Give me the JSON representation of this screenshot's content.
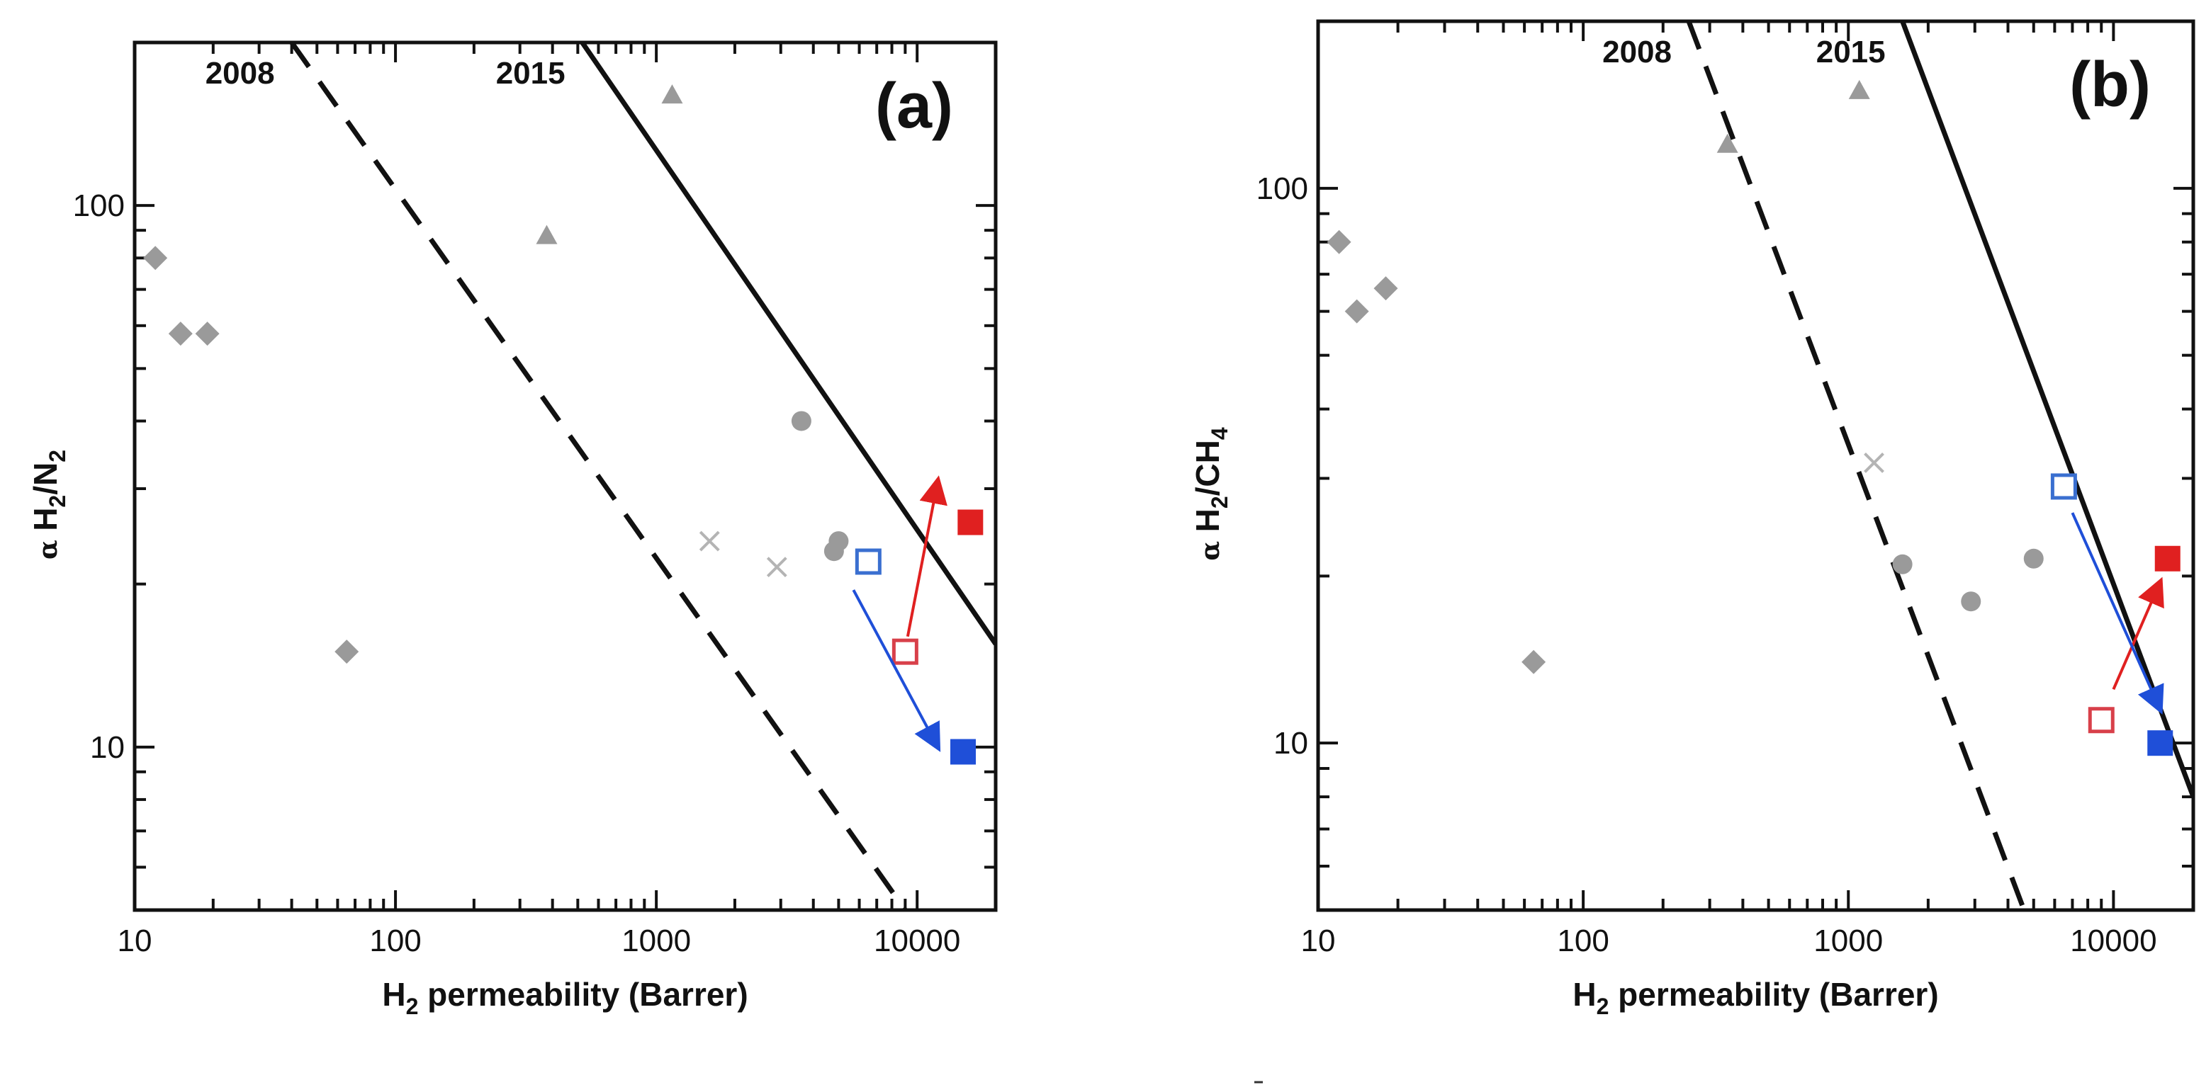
{
  "chart_data": [
    {
      "type": "scatter",
      "panel_label": "(a)",
      "xlabel": {
        "pre": "H",
        "sub": "2",
        "post": " permeability (Barrer)"
      },
      "ylabel": {
        "symbol": "α",
        "parts": [
          {
            "t": "H"
          },
          {
            "t": "2",
            "sub": true
          },
          {
            "t": "/N"
          },
          {
            "t": "2",
            "sub": true
          }
        ]
      },
      "x_scale": "log",
      "y_scale": "log",
      "xlim": [
        10,
        20000
      ],
      "ylim": [
        5,
        200
      ],
      "x_ticks": [
        10,
        100,
        1000,
        10000
      ],
      "x_tick_labels": [
        "10",
        "100",
        "1000",
        "10000"
      ],
      "y_ticks": [
        10,
        100
      ],
      "y_tick_labels": [
        "10",
        "100"
      ],
      "upper_bounds": [
        {
          "label": "2008",
          "style": "dashed",
          "points": [
            [
              40,
              200
            ],
            [
              9000,
              5
            ]
          ]
        },
        {
          "label": "2015",
          "style": "solid",
          "points": [
            [
              520,
              200
            ],
            [
              20000,
              15.5
            ]
          ]
        }
      ],
      "series": [
        {
          "name": "diamonds",
          "marker": "diamond",
          "color": "#9a9a9a",
          "points": [
            [
              12,
              80
            ],
            [
              15,
              58
            ],
            [
              19,
              58
            ],
            [
              65,
              15
            ]
          ]
        },
        {
          "name": "triangles",
          "marker": "triangle",
          "color": "#9a9a9a",
          "points": [
            [
              380,
              88
            ],
            [
              1150,
              160
            ]
          ]
        },
        {
          "name": "circles",
          "marker": "circle",
          "color": "#9a9a9a",
          "points": [
            [
              3600,
              40
            ],
            [
              4800,
              23
            ],
            [
              5000,
              24
            ]
          ]
        },
        {
          "name": "crosses",
          "marker": "x",
          "color": "#b4b4b4",
          "points": [
            [
              1600,
              24
            ],
            [
              2900,
              21.5
            ]
          ]
        },
        {
          "name": "red open",
          "marker": "square-open",
          "color": "#d8404a",
          "points": [
            [
              9000,
              15
            ]
          ]
        },
        {
          "name": "red filled",
          "marker": "square",
          "color": "#e02020",
          "points": [
            [
              16000,
              26
            ]
          ]
        },
        {
          "name": "blue open",
          "marker": "square-open",
          "color": "#3a6fd0",
          "points": [
            [
              6500,
              22
            ]
          ]
        },
        {
          "name": "blue filled",
          "marker": "square",
          "color": "#1f4fd8",
          "points": [
            [
              15000,
              9.8
            ]
          ]
        }
      ],
      "arrows": [
        {
          "color": "#e02020",
          "from": [
            9200,
            16
          ],
          "to": [
            12000,
            31
          ]
        },
        {
          "color": "#1f4fd8",
          "from": [
            5700,
            19.5
          ],
          "to": [
            12000,
            10
          ]
        }
      ]
    },
    {
      "type": "scatter",
      "panel_label": "(b)",
      "xlabel": {
        "pre": "H",
        "sub": "2",
        "post": " permeability (Barrer)"
      },
      "ylabel": {
        "symbol": "α",
        "parts": [
          {
            "t": "H"
          },
          {
            "t": "2",
            "sub": true
          },
          {
            "t": "/CH"
          },
          {
            "t": "4",
            "sub": true
          }
        ]
      },
      "x_scale": "log",
      "y_scale": "log",
      "xlim": [
        10,
        20000
      ],
      "ylim": [
        5,
        200
      ],
      "x_ticks": [
        10,
        100,
        1000,
        10000
      ],
      "x_tick_labels": [
        "10",
        "100",
        "1000",
        "10000"
      ],
      "y_ticks": [
        10,
        100
      ],
      "y_tick_labels": [
        "10",
        "100"
      ],
      "upper_bounds": [
        {
          "label": "2008",
          "style": "dashed",
          "points": [
            [
              250,
              200
            ],
            [
              4600,
              5
            ]
          ]
        },
        {
          "label": "2015",
          "style": "solid",
          "points": [
            [
              1600,
              200
            ],
            [
              20000,
              8
            ]
          ]
        }
      ],
      "series": [
        {
          "name": "diamonds",
          "marker": "diamond",
          "color": "#9a9a9a",
          "points": [
            [
              12,
              80
            ],
            [
              14,
              60
            ],
            [
              18,
              66
            ],
            [
              65,
              14
            ]
          ]
        },
        {
          "name": "triangles",
          "marker": "triangle",
          "color": "#9a9a9a",
          "points": [
            [
              350,
              120
            ],
            [
              1100,
              150
            ]
          ]
        },
        {
          "name": "circles",
          "marker": "circle",
          "color": "#9a9a9a",
          "points": [
            [
              1600,
              21
            ],
            [
              2900,
              18
            ],
            [
              5000,
              21.5
            ]
          ]
        },
        {
          "name": "crosses",
          "marker": "x",
          "color": "#b4b4b4",
          "points": [
            [
              1250,
              32
            ]
          ]
        },
        {
          "name": "red open",
          "marker": "square-open",
          "color": "#d8404a",
          "points": [
            [
              9000,
              11
            ]
          ]
        },
        {
          "name": "red filled",
          "marker": "square",
          "color": "#e02020",
          "points": [
            [
              16000,
              21.5
            ]
          ]
        },
        {
          "name": "blue open",
          "marker": "square-open",
          "color": "#3a6fd0",
          "points": [
            [
              6500,
              29
            ]
          ]
        },
        {
          "name": "blue filled",
          "marker": "square",
          "color": "#1f4fd8",
          "points": [
            [
              15000,
              10
            ]
          ]
        }
      ],
      "arrows": [
        {
          "color": "#e02020",
          "from": [
            10000,
            12.5
          ],
          "to": [
            15000,
            19.5
          ]
        },
        {
          "color": "#1f4fd8",
          "from": [
            7000,
            26
          ],
          "to": [
            15000,
            11.5
          ]
        }
      ]
    }
  ]
}
